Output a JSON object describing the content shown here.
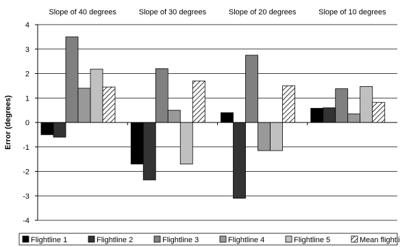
{
  "chart_data": {
    "type": "bar",
    "categories": [
      "Slope of 40 degrees",
      "Slope of 30 degrees",
      "Slope of 20 degrees",
      "Slope of 10 degrees"
    ],
    "series": [
      {
        "name": "Flightline 1",
        "values": [
          -0.5,
          -1.7,
          0.4,
          0.58
        ],
        "color": "#000000",
        "pattern": "solid"
      },
      {
        "name": "Flightline 2",
        "values": [
          -0.6,
          -2.35,
          -3.1,
          0.6
        ],
        "color": "#333333",
        "pattern": "solid"
      },
      {
        "name": "Flightline 3",
        "values": [
          3.5,
          2.2,
          2.75,
          1.38
        ],
        "color": "#808080",
        "pattern": "solid"
      },
      {
        "name": "Flightline 4",
        "values": [
          1.4,
          0.5,
          -1.15,
          0.35
        ],
        "color": "#999999",
        "pattern": "solid"
      },
      {
        "name": "Flightline 5",
        "values": [
          2.18,
          -1.7,
          -1.15,
          1.47
        ],
        "color": "#c0c0c0",
        "pattern": "solid"
      },
      {
        "name": "Mean flightline error",
        "values": [
          1.45,
          1.7,
          1.5,
          0.82
        ],
        "color": "#ffffff",
        "pattern": "hatch"
      }
    ],
    "ylabel": "Error (degrees)",
    "ylim": [
      -4,
      4
    ],
    "yticks": [
      4,
      3,
      2,
      1,
      0,
      -1,
      -2,
      -3,
      -4
    ],
    "grid": true,
    "legend_position": "bottom"
  }
}
